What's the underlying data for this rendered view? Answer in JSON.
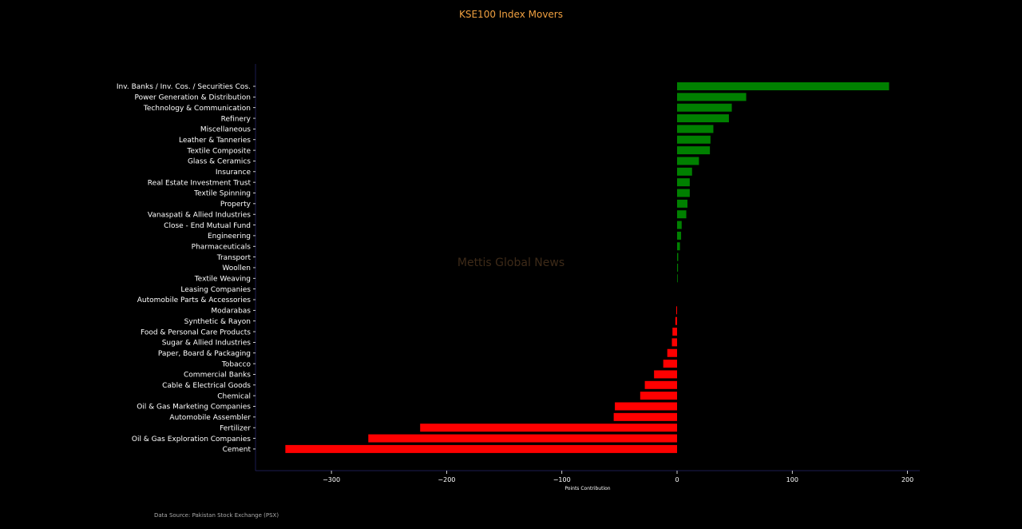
{
  "colors": {
    "background": "#000000",
    "title": "#f0a040",
    "positive": "#008000",
    "negative": "#ff0000",
    "axis": "#1c1c50",
    "watermark": "#3d2a18"
  },
  "watermark": "Mettis Global News",
  "source": "Data Source: Pakistan Stock Exchange (PSX)",
  "chart_data": {
    "type": "bar",
    "orientation": "horizontal",
    "title": "KSE100 Index Movers",
    "xlabel": "Points Contribution",
    "ylabel": "",
    "xlim": [
      -365,
      210
    ],
    "xticks": [
      -300,
      -200,
      -100,
      0,
      100,
      200
    ],
    "xtick_labels": [
      "−300",
      "−200",
      "−100",
      "0",
      "100",
      "200"
    ],
    "grid": false,
    "categories": [
      "Inv. Banks / Inv. Cos. / Securities Cos.",
      "Power Generation & Distribution",
      "Technology & Communication",
      "Refinery",
      "Miscellaneous",
      "Leather & Tanneries",
      "Textile Composite",
      "Glass & Ceramics",
      "Insurance",
      "Real Estate Investment Trust",
      "Textile Spinning",
      "Property",
      "Vanaspati & Allied Industries",
      "Close - End Mutual Fund",
      "Engineering",
      "Pharmaceuticals",
      "Transport",
      "Woollen",
      "Textile Weaving",
      "Leasing Companies",
      "Automobile Parts & Accessories",
      "Modarabas",
      "Synthetic & Rayon",
      "Food & Personal Care Products",
      "Sugar & Allied Industries",
      "Paper, Board & Packaging",
      "Tobacco",
      "Commercial Banks",
      "Cable & Electrical Goods",
      "Chemical",
      "Oil & Gas Marketing Companies",
      "Automobile Assembler",
      "Fertilizer",
      "Oil & Gas Exploration Companies",
      "Cement"
    ],
    "values": [
      184,
      60,
      47.5,
      45,
      31.5,
      29,
      28.5,
      19,
      13,
      11,
      11,
      9,
      8,
      4,
      3.5,
      2.5,
      1,
      0.8,
      0.5,
      0,
      0,
      -0.7,
      -1.5,
      -4,
      -4.5,
      -8.5,
      -12,
      -20,
      -28,
      -32,
      -54,
      -55,
      -223,
      -268,
      -340
    ]
  }
}
